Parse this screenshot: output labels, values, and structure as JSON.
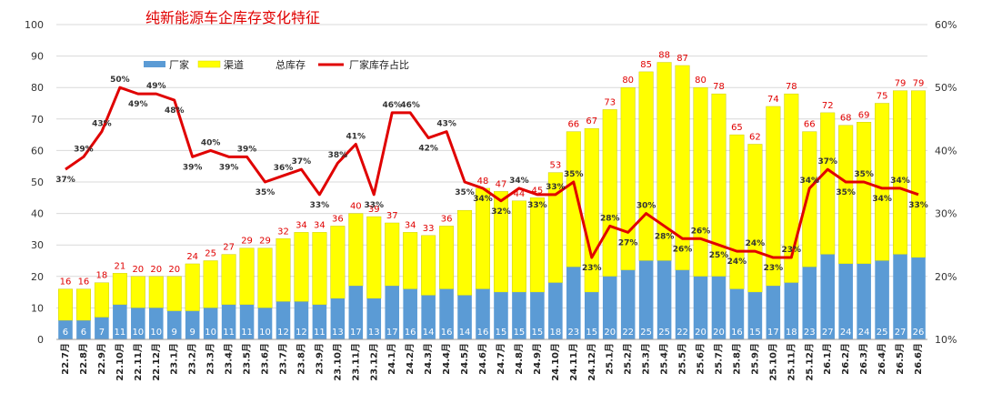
{
  "chart_data": {
    "type": "bar",
    "title": "纯新能源车企库存变化特征",
    "legend": [
      "厂家",
      "渠道",
      "总库存",
      "厂家库存占比"
    ],
    "colors": {
      "factory": "#5b9bd5",
      "channel": "#ffff00",
      "ratio_line": "#e00000",
      "total_label": "#e00000"
    },
    "y_left": {
      "ylim": [
        0,
        100
      ],
      "ticks": [
        0,
        10,
        20,
        30,
        40,
        50,
        60,
        70,
        80,
        90,
        100
      ]
    },
    "y_right": {
      "ylim": [
        10,
        60
      ],
      "ticks": [
        "10%",
        "20%",
        "30%",
        "40%",
        "50%",
        "60%"
      ]
    },
    "categories": [
      "22.7月",
      "22.8月",
      "22.9月",
      "22.10月",
      "22.11月",
      "22.12月",
      "23.1月",
      "23.2月",
      "23.3月",
      "23.4月",
      "23.5月",
      "23.6月",
      "23.7月",
      "23.8月",
      "23.9月",
      "23.10月",
      "23.11月",
      "23.12月",
      "24.1月",
      "24.2月",
      "24.3月",
      "24.4月",
      "24.5月",
      "24.6月",
      "24.7月",
      "24.8月",
      "24.9月",
      "24.10月",
      "24.11月",
      "24.12月",
      "25.1月",
      "25.2月",
      "25.3月",
      "25.4月",
      "25.5月",
      "25.6月",
      "25.7月",
      "25.8月",
      "25.9月",
      "25.10月",
      "25.11月",
      "25.12月",
      "26.1月",
      "26.2月",
      "26.3月",
      "26.4月",
      "26.5月",
      "26.6月"
    ],
    "series": [
      {
        "name": "厂家",
        "values": [
          6,
          6,
          7,
          11,
          10,
          10,
          9,
          9,
          10,
          11,
          11,
          10,
          12,
          12,
          11,
          13,
          17,
          13,
          17,
          16,
          14,
          16,
          14,
          16,
          15,
          15,
          15,
          18,
          23,
          15,
          20,
          22,
          25,
          25,
          22,
          20,
          20,
          16,
          15,
          17,
          18,
          23,
          27,
          24,
          24,
          25,
          27,
          26
        ]
      },
      {
        "name": "总库存",
        "values": [
          16,
          16,
          18,
          21,
          20,
          20,
          20,
          24,
          25,
          27,
          29,
          29,
          32,
          34,
          34,
          36,
          40,
          39,
          37,
          34,
          33,
          36,
          41,
          48,
          47,
          44,
          45,
          53,
          66,
          67,
          73,
          80,
          85,
          88,
          87,
          80,
          78,
          65,
          62,
          74,
          78,
          66,
          72,
          68,
          69,
          75,
          79,
          79
        ]
      },
      {
        "name": "厂家库存占比",
        "values": [
          37,
          39,
          43,
          50,
          49,
          49,
          48,
          39,
          40,
          39,
          39,
          35,
          36,
          37,
          33,
          38,
          41,
          33,
          46,
          46,
          42,
          43,
          35,
          34,
          32,
          34,
          33,
          33,
          35,
          23,
          28,
          27,
          30,
          28,
          26,
          26,
          25,
          24,
          24,
          23,
          23,
          34,
          37,
          35,
          35,
          34,
          34,
          33
        ]
      }
    ],
    "labels": {
      "factory": [
        "6",
        "6",
        "7",
        "11",
        "10",
        "10",
        "9",
        "9",
        "10",
        "11",
        "11",
        "10",
        "12",
        "12",
        "11",
        "13",
        "17",
        "13",
        "17",
        "16",
        "14",
        "16",
        "14",
        "16",
        "15",
        "15",
        "15",
        "18",
        "23",
        "15",
        "20",
        "22",
        "25",
        "25",
        "22",
        "20",
        "20",
        "16",
        "15",
        "17",
        "18",
        "23",
        "27",
        "24",
        "24",
        "25",
        "27",
        "26"
      ],
      "total": [
        "16",
        "16",
        "18",
        "21",
        "20",
        "20",
        "20",
        "24",
        "25",
        "27",
        "29",
        "29",
        "32",
        "34",
        "34",
        "36",
        "40",
        "39",
        "37",
        "34",
        "33",
        "36",
        "",
        "48",
        "47",
        "44",
        "45",
        "53",
        "66",
        "67",
        "73",
        "80",
        "85",
        "88",
        "87",
        "80",
        "78",
        "65",
        "62",
        "74",
        "78",
        "66",
        "72",
        "68",
        "69",
        "75",
        "79",
        "79"
      ],
      "ratio": [
        "37%",
        "39%",
        "43%",
        "50%",
        "49%",
        "49%",
        "48%",
        "39%",
        "40%",
        "39%",
        "39%",
        "35%",
        "36%",
        "37%",
        "33%",
        "38%",
        "41%",
        "33%",
        "46%",
        "46%",
        "42%",
        "43%",
        "35%",
        "34%",
        "32%",
        "34%",
        "33%",
        "33%",
        "35%",
        "23%",
        "28%",
        "27%",
        "30%",
        "28%",
        "26%",
        "26%",
        "25%",
        "24%",
        "24%",
        "23%",
        "23%",
        "34%",
        "37%",
        "35%",
        "35%",
        "34%",
        "34%",
        "33%"
      ]
    },
    "grid": true,
    "legend_position": "top-left"
  }
}
